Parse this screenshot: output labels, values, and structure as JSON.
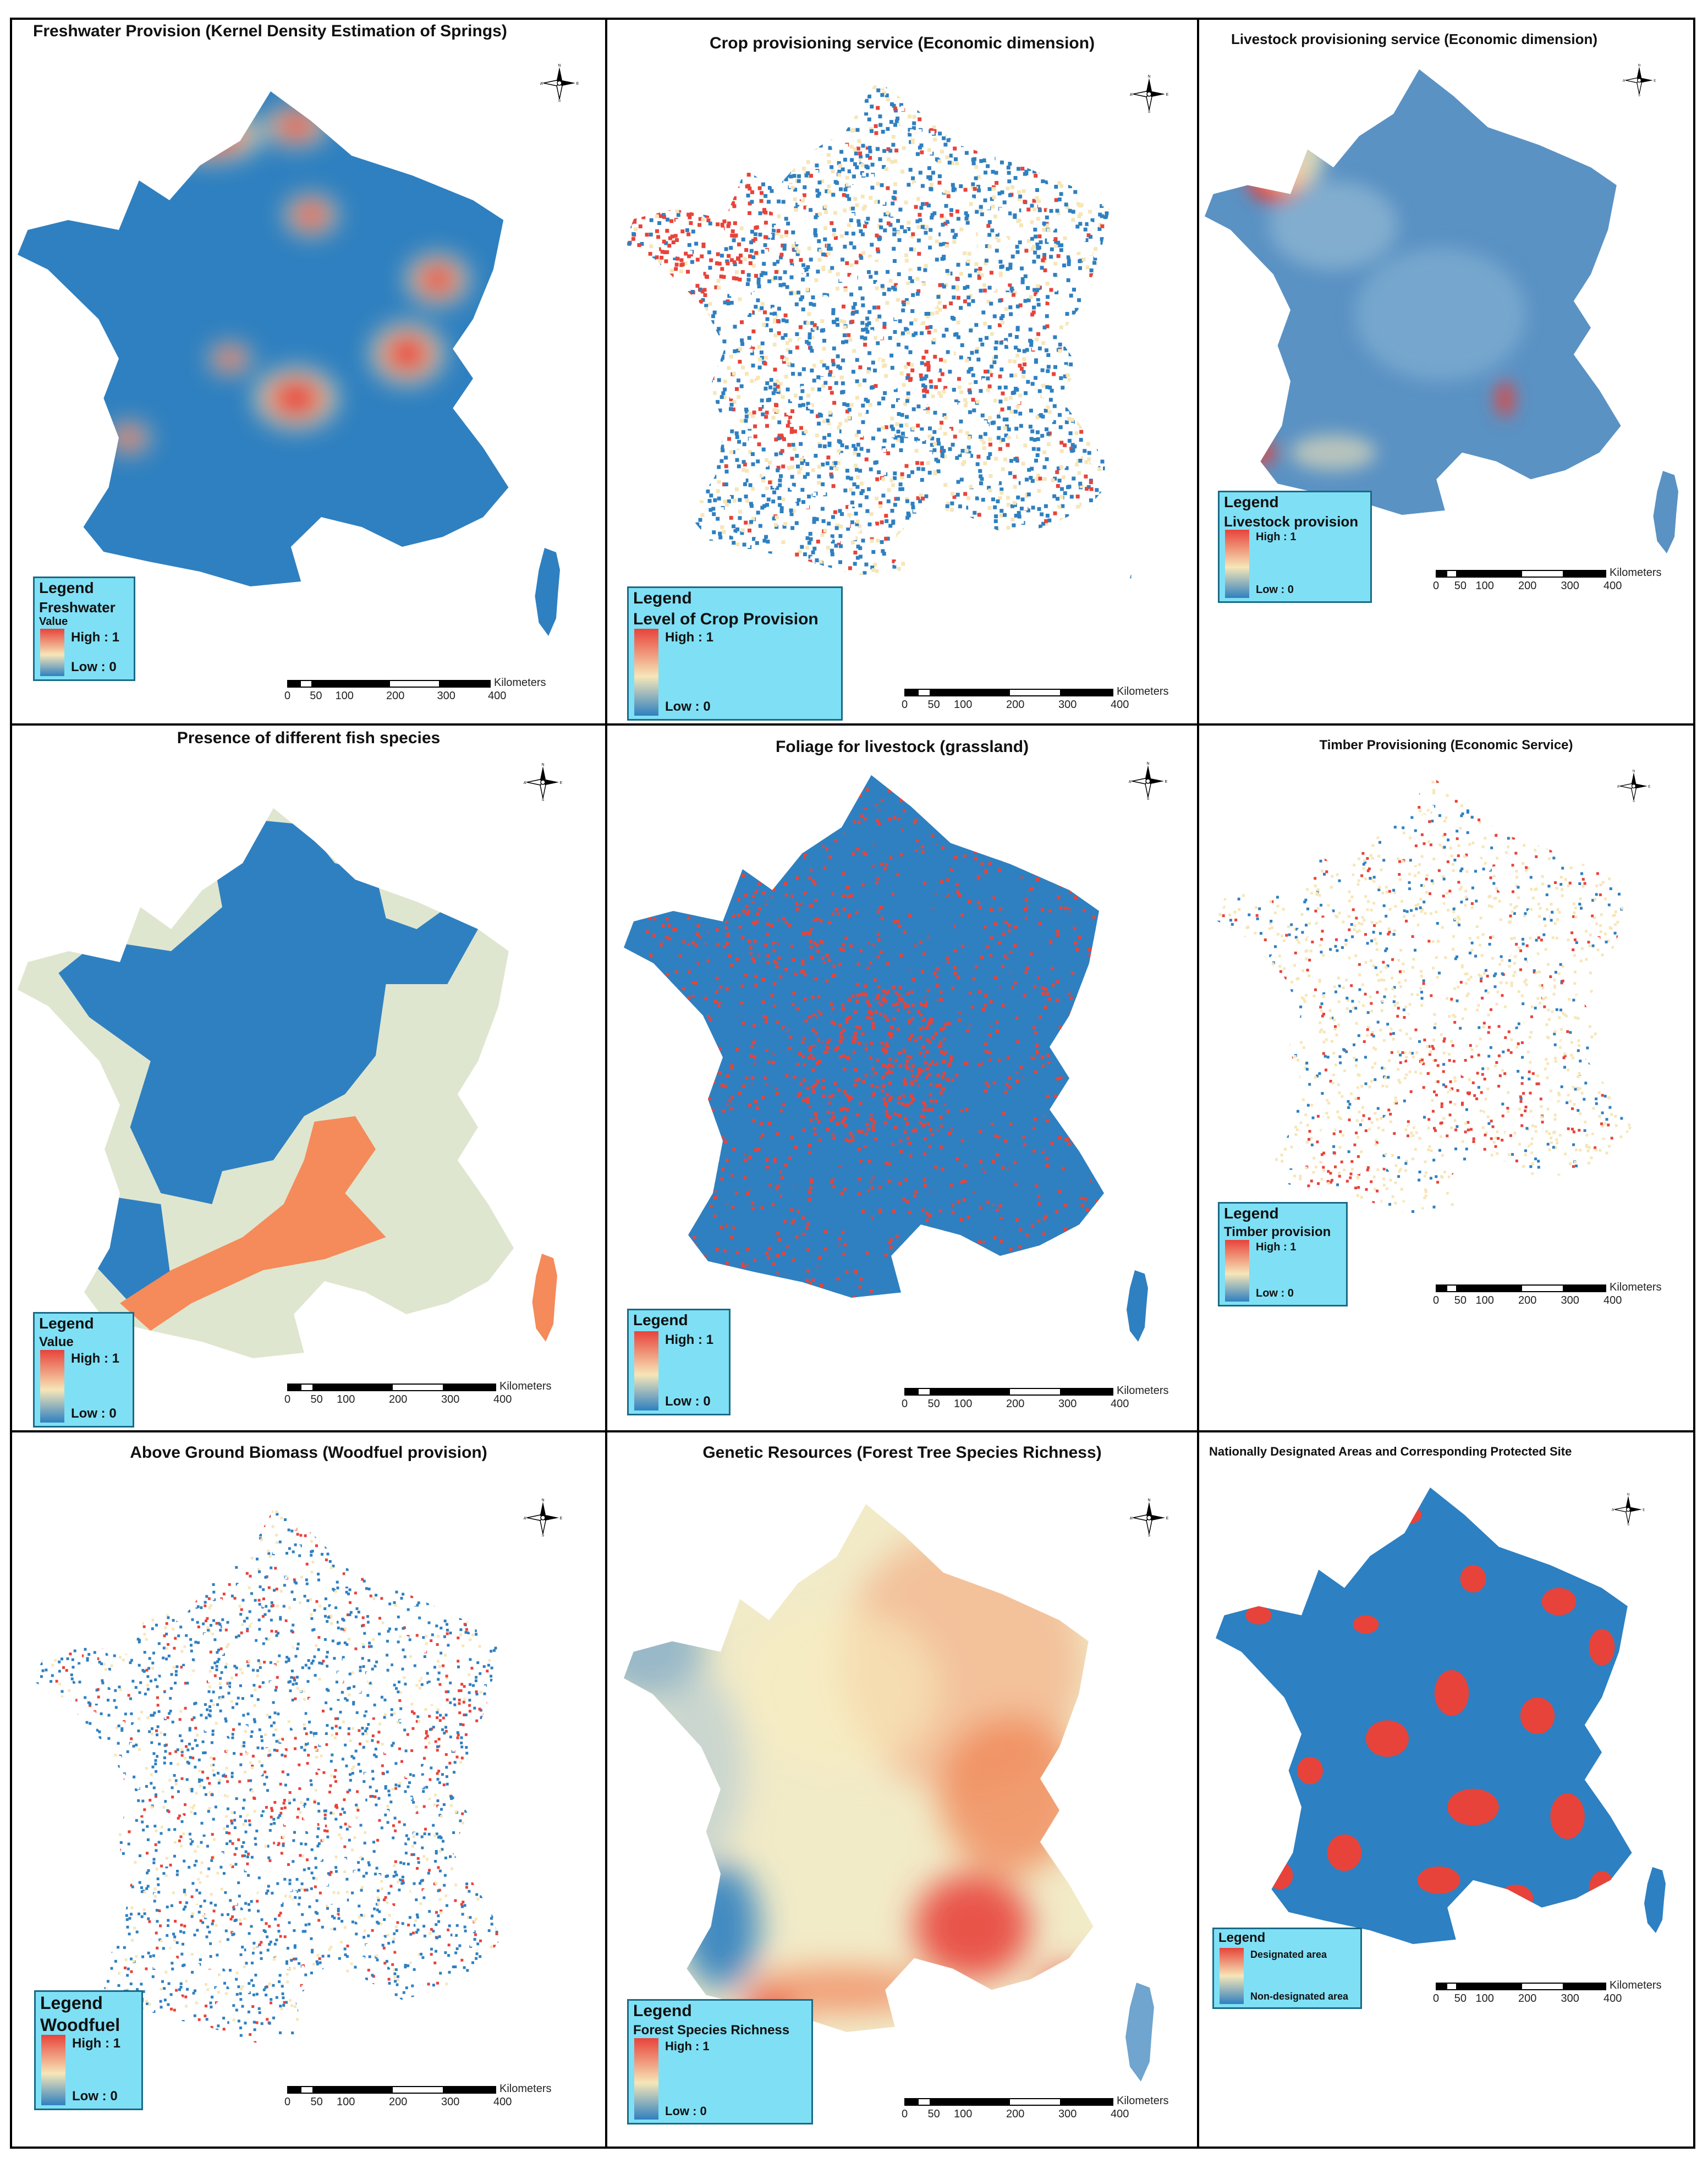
{
  "panels": [
    {
      "title": "Freshwater Provision (Kernel Density Estimation of Springs)",
      "legend": {
        "heading": "Legend",
        "sub": "Freshwater",
        "sub2": "Value",
        "high": "High : 1",
        "low": "Low : 0"
      }
    },
    {
      "title": "Crop provisioning service (Economic dimension)",
      "legend": {
        "heading": "Legend",
        "sub": "Level of Crop Provision",
        "high": "High : 1",
        "low": "Low : 0"
      }
    },
    {
      "title": "Livestock provisioning service (Economic dimension)",
      "legend": {
        "heading": "Legend",
        "sub": "Livestock provision",
        "high": "High : 1",
        "low": "Low : 0"
      }
    },
    {
      "title": "Presence of different fish species",
      "legend": {
        "heading": "Legend",
        "sub": "Value",
        "high": "High : 1",
        "low": "Low : 0"
      }
    },
    {
      "title": "Foliage for livestock (grassland)",
      "legend": {
        "heading": "Legend",
        "high": "High : 1",
        "low": "Low : 0"
      }
    },
    {
      "title": "Timber Provisioning (Economic Service)",
      "legend": {
        "heading": "Legend",
        "sub": "Timber provision",
        "high": "High : 1",
        "low": "Low : 0"
      }
    },
    {
      "title": "Above Ground Biomass (Woodfuel provision)",
      "legend": {
        "heading": "Legend",
        "sub": "Woodfuel",
        "high": "High : 1",
        "low": "Low : 0"
      }
    },
    {
      "title": "Genetic Resources (Forest Tree Species Richness)",
      "legend": {
        "heading": "Legend",
        "sub": "Forest Species Richness",
        "high": "High : 1",
        "low": "Low : 0"
      }
    },
    {
      "title": "Nationally Designated Areas and Corresponding Protected Site",
      "legend": {
        "heading": "Legend",
        "high": "Designated area",
        "low": "Non-designated area"
      }
    }
  ],
  "scalebar": {
    "ticks": [
      "0",
      "50",
      "100",
      "200",
      "300",
      "400"
    ],
    "unit": "Kilometers"
  },
  "compass": {
    "n": "N",
    "s": "S",
    "e": "E",
    "w": "W"
  },
  "colors": {
    "high": "#e8433a",
    "mid": "#f6e6b8",
    "low": "#2f80c0",
    "fish_mid": "#dfe6cf",
    "fish_high": "#f58a5a",
    "legend_bg": "#7fe0f5"
  }
}
